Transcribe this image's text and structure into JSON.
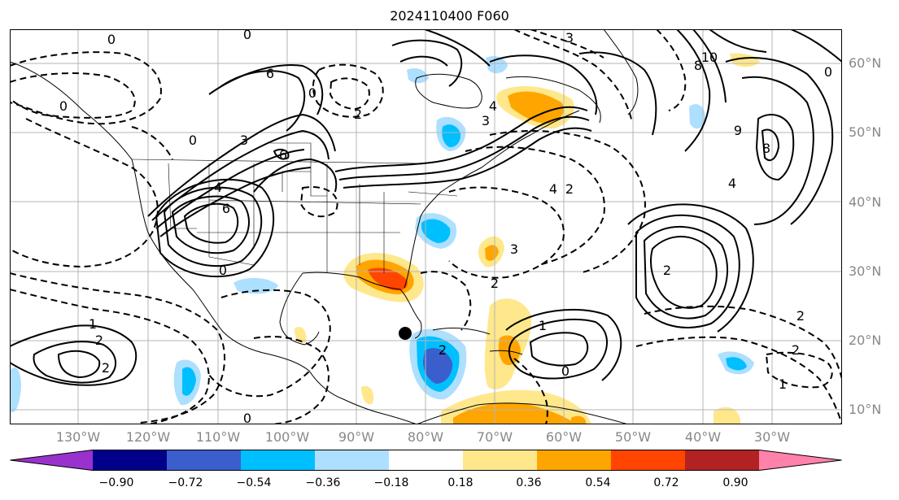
{
  "title": "2024110400 F060",
  "lat_labels": [
    "60°N",
    "50°N",
    "40°N",
    "30°N",
    "20°N",
    "10°N"
  ],
  "lon_labels": [
    "130°W",
    "120°W",
    "110°W",
    "100°W",
    "90°W",
    "80°W",
    "70°W",
    "60°W",
    "50°W",
    "40°W",
    "30°W"
  ],
  "contour_labels": [
    "0",
    "0",
    "2",
    "3",
    "4",
    "6",
    "3",
    "4",
    "10",
    "8",
    "9",
    "8",
    "4",
    "6",
    "2",
    "0",
    "4",
    "3",
    "3",
    "0",
    "1",
    "2",
    "2",
    "1",
    "0",
    "0",
    "2",
    "2",
    "1",
    "0",
    "2",
    "2",
    "6",
    "0",
    "2",
    "0"
  ],
  "colorbar": {
    "ticks": [
      "−0.90",
      "−0.72",
      "−0.54",
      "−0.36",
      "−0.18",
      "0.18",
      "0.36",
      "0.54",
      "0.72",
      "0.90"
    ],
    "colors": [
      "#9932CC",
      "#00008B",
      "#3A5FCD",
      "#00BFFF",
      "#ADDFFF",
      "#FFFFFF",
      "#FFE78C",
      "#FFA500",
      "#FF4500",
      "#B22222",
      "#FF82AB"
    ]
  },
  "storm_marker": {
    "lat": 21,
    "lon": -84
  }
}
